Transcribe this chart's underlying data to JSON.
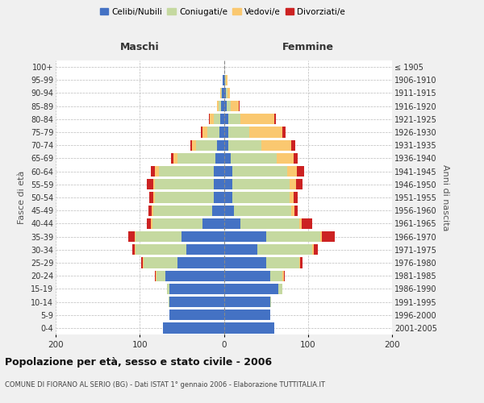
{
  "age_groups": [
    "0-4",
    "5-9",
    "10-14",
    "15-19",
    "20-24",
    "25-29",
    "30-34",
    "35-39",
    "40-44",
    "45-49",
    "50-54",
    "55-59",
    "60-64",
    "65-69",
    "70-74",
    "75-79",
    "80-84",
    "85-89",
    "90-94",
    "95-99",
    "100+"
  ],
  "birth_years": [
    "2001-2005",
    "1996-2000",
    "1991-1995",
    "1986-1990",
    "1981-1985",
    "1976-1980",
    "1971-1975",
    "1966-1970",
    "1961-1965",
    "1956-1960",
    "1951-1955",
    "1946-1950",
    "1941-1945",
    "1936-1940",
    "1931-1935",
    "1926-1930",
    "1921-1925",
    "1916-1920",
    "1911-1915",
    "1906-1910",
    "≤ 1905"
  ],
  "maschi": {
    "celibi": [
      72,
      65,
      65,
      65,
      70,
      55,
      45,
      50,
      25,
      14,
      12,
      12,
      12,
      10,
      8,
      5,
      4,
      3,
      2,
      1,
      0
    ],
    "coniugati": [
      0,
      0,
      1,
      3,
      10,
      40,
      60,
      55,
      60,
      70,
      70,
      70,
      65,
      45,
      25,
      15,
      8,
      3,
      1,
      0,
      0
    ],
    "vedovi": [
      0,
      0,
      0,
      0,
      1,
      1,
      1,
      1,
      2,
      2,
      2,
      2,
      5,
      5,
      5,
      5,
      5,
      2,
      1,
      0,
      0
    ],
    "divorziati": [
      0,
      0,
      0,
      0,
      1,
      2,
      3,
      8,
      5,
      4,
      5,
      8,
      5,
      3,
      2,
      2,
      1,
      0,
      0,
      0,
      0
    ]
  },
  "femmine": {
    "nubili": [
      60,
      55,
      55,
      65,
      55,
      50,
      40,
      50,
      20,
      12,
      10,
      10,
      10,
      8,
      5,
      5,
      5,
      3,
      2,
      1,
      0
    ],
    "coniugate": [
      0,
      0,
      1,
      5,
      15,
      40,
      65,
      65,
      70,
      68,
      68,
      68,
      65,
      55,
      40,
      25,
      15,
      5,
      2,
      1,
      0
    ],
    "vedove": [
      0,
      0,
      0,
      0,
      1,
      1,
      2,
      2,
      3,
      4,
      5,
      8,
      12,
      20,
      35,
      40,
      40,
      10,
      3,
      2,
      0
    ],
    "divorziate": [
      0,
      0,
      0,
      0,
      1,
      3,
      5,
      15,
      12,
      4,
      5,
      8,
      8,
      5,
      5,
      3,
      2,
      1,
      0,
      0,
      0
    ]
  },
  "colors": {
    "celibi": "#4472C4",
    "coniugati": "#C5D9A0",
    "vedovi": "#FAC870",
    "divorziati": "#CC2222"
  },
  "xlim": 200,
  "title": "Popolazione per età, sesso e stato civile - 2006",
  "subtitle": "COMUNE DI FIORANO AL SERIO (BG) - Dati ISTAT 1° gennaio 2006 - Elaborazione TUTTITALIA.IT",
  "ylabel_left": "Fasce di età",
  "ylabel_right": "Anni di nascita",
  "xlabel_maschi": "Maschi",
  "xlabel_femmine": "Femmine",
  "bg_color": "#f0f0f0",
  "plot_bg": "#ffffff"
}
